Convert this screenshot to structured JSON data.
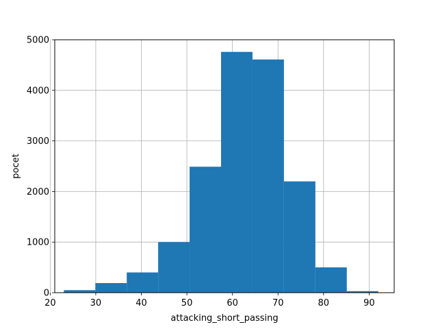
{
  "chart_data": {
    "type": "bar",
    "title": "",
    "xlabel": "attacking_short_passing",
    "ylabel": "pocet",
    "xlim": [
      21,
      95.5
    ],
    "ylim": [
      0,
      5000
    ],
    "grid": true,
    "x_ticks": [
      20,
      30,
      40,
      50,
      60,
      70,
      80,
      90
    ],
    "y_ticks": [
      0,
      1000,
      2000,
      3000,
      4000,
      5000
    ],
    "bar_color": "#1f77b4",
    "bins": [
      {
        "x0": 23.0,
        "x1": 29.9,
        "value": 50
      },
      {
        "x0": 29.9,
        "x1": 36.8,
        "value": 190
      },
      {
        "x0": 36.8,
        "x1": 43.7,
        "value": 400
      },
      {
        "x0": 43.7,
        "x1": 50.6,
        "value": 1000
      },
      {
        "x0": 50.6,
        "x1": 57.5,
        "value": 2490
      },
      {
        "x0": 57.5,
        "x1": 64.4,
        "value": 4760
      },
      {
        "x0": 64.4,
        "x1": 71.3,
        "value": 4610
      },
      {
        "x0": 71.3,
        "x1": 78.2,
        "value": 2200
      },
      {
        "x0": 78.2,
        "x1": 85.1,
        "value": 500
      },
      {
        "x0": 85.1,
        "x1": 92.0,
        "value": 30
      }
    ]
  }
}
